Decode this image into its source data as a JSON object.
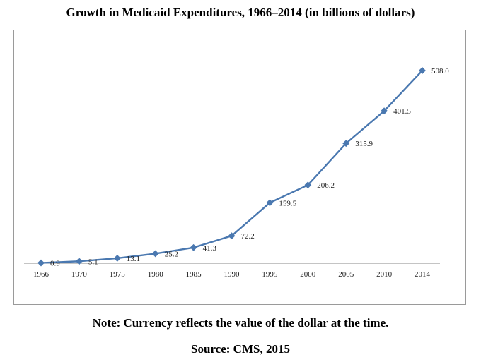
{
  "chart_data": {
    "type": "line",
    "title": "Growth in Medicaid Expenditures, 1966–2014 (in billions of dollars)",
    "categories": [
      "1966",
      "1970",
      "1975",
      "1980",
      "1985",
      "1990",
      "1995",
      "2000",
      "2005",
      "2010",
      "2014"
    ],
    "series": [
      {
        "name": "Medicaid Expenditures",
        "values": [
          0.9,
          5.1,
          13.1,
          25.2,
          41.3,
          72.2,
          159.5,
          206.2,
          315.9,
          401.5,
          508.0
        ],
        "labels": [
          "0.9",
          "5.1",
          "13.1",
          "25.2",
          "41.3",
          "72.2",
          "159.5",
          "206.2",
          "315.9",
          "401.5",
          "508.0"
        ]
      }
    ],
    "ylim": [
      0,
      550
    ],
    "xlabel": "",
    "ylabel": "",
    "grid": false,
    "colors": {
      "line": "#4a78b0",
      "marker": "#4a78b0",
      "axis": "#8a8a8a"
    }
  },
  "note": "Note: Currency reflects the value of the dollar at the time.",
  "source": "Source: CMS, 2015"
}
